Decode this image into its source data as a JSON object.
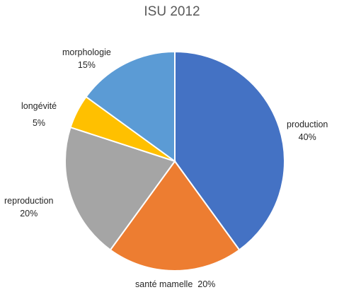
{
  "chart_data": {
    "type": "pie",
    "title": "ISU 2012",
    "slices": [
      {
        "name": "production",
        "value": 40,
        "label": "40%",
        "color": "#4472C4"
      },
      {
        "name": "santé mamelle",
        "value": 20,
        "label": "20%",
        "color": "#ED7D31"
      },
      {
        "name": "reproduction",
        "value": 20,
        "label": "20%",
        "color": "#A5A5A5"
      },
      {
        "name": "longévité",
        "value": 5,
        "label": "5%",
        "color": "#FFC000"
      },
      {
        "name": "morphologie",
        "value": 15,
        "label": "15%",
        "color": "#5B9BD5"
      }
    ],
    "legend": "none"
  }
}
